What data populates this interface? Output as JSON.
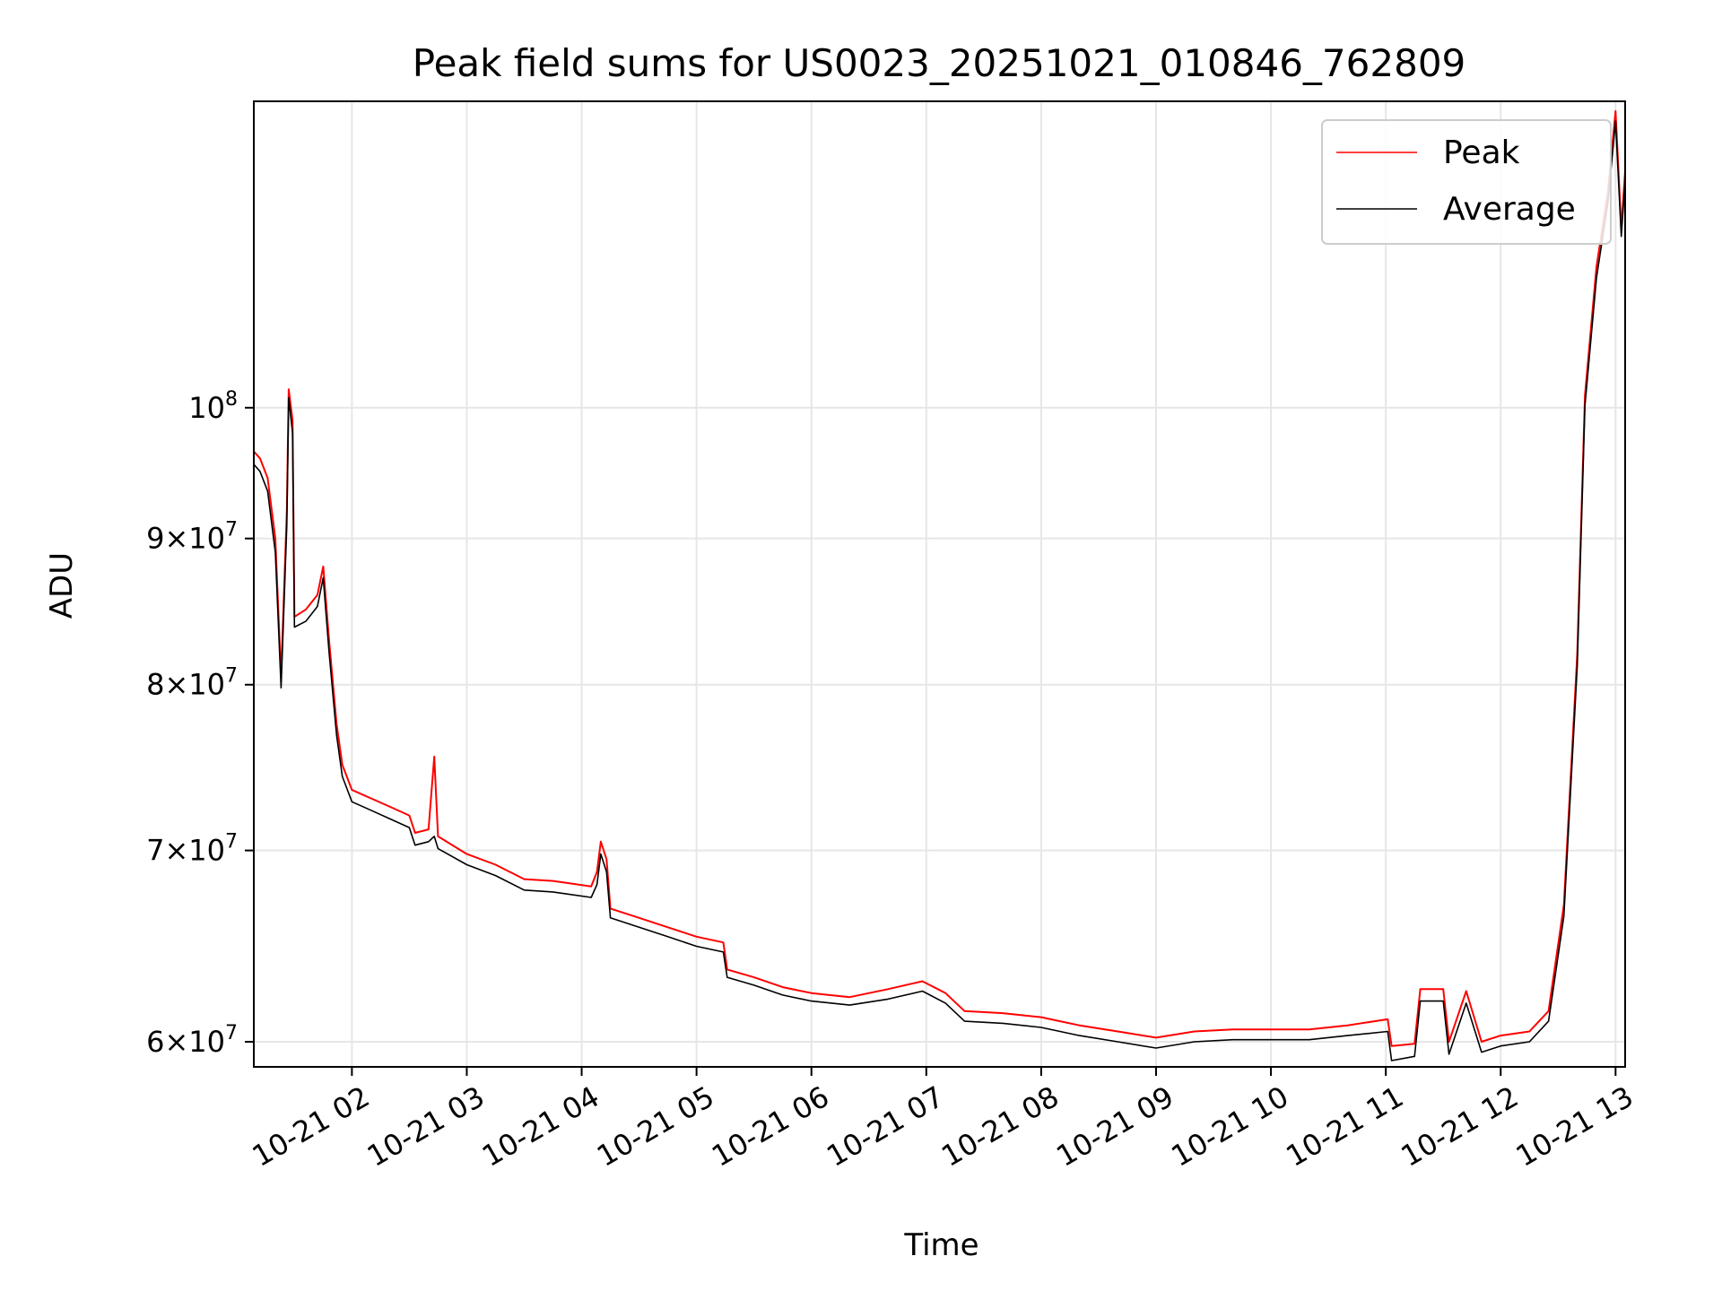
{
  "chart_data": {
    "type": "line",
    "title": "Peak field sums for US0023_20251021_010846_762809",
    "xlabel": "Time",
    "ylabel": "ADU",
    "y_scale": "log",
    "grid": true,
    "legend_position": "top-right",
    "xlim": [
      "2025-10-21 01:08:46",
      "2025-10-21 13:05:00"
    ],
    "ylim": [
      58800000,
      128000000
    ],
    "x_ticks": [
      "10-21 02",
      "10-21 03",
      "10-21 04",
      "10-21 05",
      "10-21 06",
      "10-21 07",
      "10-21 08",
      "10-21 09",
      "10-21 10",
      "10-21 11",
      "10-21 12",
      "10-21 13"
    ],
    "y_ticks": [
      {
        "value": 60000000,
        "mantissa": "6",
        "exponent": "7"
      },
      {
        "value": 70000000,
        "mantissa": "7",
        "exponent": "7"
      },
      {
        "value": 80000000,
        "mantissa": "8",
        "exponent": "7"
      },
      {
        "value": 90000000,
        "mantissa": "9",
        "exponent": "7"
      },
      {
        "value": 100000000,
        "mantissa": "",
        "exponent": "8"
      }
    ],
    "series": [
      {
        "name": "Peak",
        "color": "#ff0000",
        "points": [
          [
            "2025-10-21 01:09",
            96500000
          ],
          [
            "2025-10-21 01:12",
            96000000
          ],
          [
            "2025-10-21 01:16",
            94500000
          ],
          [
            "2025-10-21 01:20",
            90000000
          ],
          [
            "2025-10-21 01:23",
            80500000
          ],
          [
            "2025-10-21 01:26",
            92000000
          ],
          [
            "2025-10-21 01:27",
            101500000
          ],
          [
            "2025-10-21 01:29",
            99000000
          ],
          [
            "2025-10-21 01:30",
            84500000
          ],
          [
            "2025-10-21 01:36",
            85000000
          ],
          [
            "2025-10-21 01:42",
            86000000
          ],
          [
            "2025-10-21 01:45",
            88000000
          ],
          [
            "2025-10-21 01:48",
            83000000
          ],
          [
            "2025-10-21 01:52",
            77500000
          ],
          [
            "2025-10-21 01:55",
            75000000
          ],
          [
            "2025-10-21 02:00",
            73500000
          ],
          [
            "2025-10-21 02:10",
            73000000
          ],
          [
            "2025-10-21 02:20",
            72500000
          ],
          [
            "2025-10-21 02:30",
            72000000
          ],
          [
            "2025-10-21 02:33",
            71000000
          ],
          [
            "2025-10-21 02:40",
            71200000
          ],
          [
            "2025-10-21 02:43",
            75500000
          ],
          [
            "2025-10-21 02:45",
            70800000
          ],
          [
            "2025-10-21 03:00",
            69800000
          ],
          [
            "2025-10-21 03:15",
            69200000
          ],
          [
            "2025-10-21 03:30",
            68400000
          ],
          [
            "2025-10-21 03:45",
            68300000
          ],
          [
            "2025-10-21 04:05",
            68000000
          ],
          [
            "2025-10-21 04:08",
            68800000
          ],
          [
            "2025-10-21 04:10",
            70500000
          ],
          [
            "2025-10-21 04:13",
            69500000
          ],
          [
            "2025-10-21 04:15",
            66800000
          ],
          [
            "2025-10-21 04:30",
            66300000
          ],
          [
            "2025-10-21 04:45",
            65800000
          ],
          [
            "2025-10-21 05:00",
            65300000
          ],
          [
            "2025-10-21 05:14",
            65000000
          ],
          [
            "2025-10-21 05:16",
            63600000
          ],
          [
            "2025-10-21 05:30",
            63200000
          ],
          [
            "2025-10-21 05:45",
            62700000
          ],
          [
            "2025-10-21 06:00",
            62400000
          ],
          [
            "2025-10-21 06:20",
            62200000
          ],
          [
            "2025-10-21 06:40",
            62600000
          ],
          [
            "2025-10-21 06:58",
            63000000
          ],
          [
            "2025-10-21 07:10",
            62400000
          ],
          [
            "2025-10-21 07:20",
            61500000
          ],
          [
            "2025-10-21 07:40",
            61400000
          ],
          [
            "2025-10-21 08:00",
            61200000
          ],
          [
            "2025-10-21 08:20",
            60800000
          ],
          [
            "2025-10-21 08:40",
            60500000
          ],
          [
            "2025-10-21 09:00",
            60200000
          ],
          [
            "2025-10-21 09:20",
            60500000
          ],
          [
            "2025-10-21 09:40",
            60600000
          ],
          [
            "2025-10-21 10:00",
            60600000
          ],
          [
            "2025-10-21 10:20",
            60600000
          ],
          [
            "2025-10-21 10:40",
            60800000
          ],
          [
            "2025-10-21 11:01",
            61100000
          ],
          [
            "2025-10-21 11:03",
            59800000
          ],
          [
            "2025-10-21 11:15",
            59900000
          ],
          [
            "2025-10-21 11:18",
            62600000
          ],
          [
            "2025-10-21 11:30",
            62600000
          ],
          [
            "2025-10-21 11:33",
            60000000
          ],
          [
            "2025-10-21 11:42",
            62500000
          ],
          [
            "2025-10-21 11:50",
            60000000
          ],
          [
            "2025-10-21 12:00",
            60300000
          ],
          [
            "2025-10-21 12:15",
            60500000
          ],
          [
            "2025-10-21 12:25",
            61500000
          ],
          [
            "2025-10-21 12:33",
            67000000
          ],
          [
            "2025-10-21 12:40",
            82000000
          ],
          [
            "2025-10-21 12:44",
            101000000
          ],
          [
            "2025-10-21 12:50",
            112000000
          ],
          [
            "2025-10-21 12:56",
            119000000
          ],
          [
            "2025-10-21 13:00",
            127000000
          ],
          [
            "2025-10-21 13:01",
            123000000
          ],
          [
            "2025-10-21 13:03",
            115500000
          ],
          [
            "2025-10-21 13:05",
            121000000
          ]
        ]
      },
      {
        "name": "Average",
        "color": "#000000",
        "points": [
          [
            "2025-10-21 01:09",
            95500000
          ],
          [
            "2025-10-21 01:12",
            95000000
          ],
          [
            "2025-10-21 01:16",
            93500000
          ],
          [
            "2025-10-21 01:20",
            89000000
          ],
          [
            "2025-10-21 01:23",
            79800000
          ],
          [
            "2025-10-21 01:26",
            91000000
          ],
          [
            "2025-10-21 01:27",
            100800000
          ],
          [
            "2025-10-21 01:29",
            98000000
          ],
          [
            "2025-10-21 01:30",
            83800000
          ],
          [
            "2025-10-21 01:36",
            84200000
          ],
          [
            "2025-10-21 01:42",
            85200000
          ],
          [
            "2025-10-21 01:45",
            87200000
          ],
          [
            "2025-10-21 01:48",
            82200000
          ],
          [
            "2025-10-21 01:52",
            76800000
          ],
          [
            "2025-10-21 01:55",
            74300000
          ],
          [
            "2025-10-21 02:00",
            72800000
          ],
          [
            "2025-10-21 02:10",
            72300000
          ],
          [
            "2025-10-21 02:20",
            71800000
          ],
          [
            "2025-10-21 02:30",
            71300000
          ],
          [
            "2025-10-21 02:33",
            70300000
          ],
          [
            "2025-10-21 02:40",
            70500000
          ],
          [
            "2025-10-21 02:43",
            70800000
          ],
          [
            "2025-10-21 02:45",
            70100000
          ],
          [
            "2025-10-21 03:00",
            69200000
          ],
          [
            "2025-10-21 03:15",
            68600000
          ],
          [
            "2025-10-21 03:30",
            67800000
          ],
          [
            "2025-10-21 03:45",
            67700000
          ],
          [
            "2025-10-21 04:05",
            67400000
          ],
          [
            "2025-10-21 04:08",
            68100000
          ],
          [
            "2025-10-21 04:10",
            69800000
          ],
          [
            "2025-10-21 04:13",
            68800000
          ],
          [
            "2025-10-21 04:15",
            66300000
          ],
          [
            "2025-10-21 04:30",
            65800000
          ],
          [
            "2025-10-21 04:45",
            65300000
          ],
          [
            "2025-10-21 05:00",
            64800000
          ],
          [
            "2025-10-21 05:14",
            64500000
          ],
          [
            "2025-10-21 05:16",
            63200000
          ],
          [
            "2025-10-21 05:30",
            62800000
          ],
          [
            "2025-10-21 05:45",
            62300000
          ],
          [
            "2025-10-21 06:00",
            62000000
          ],
          [
            "2025-10-21 06:20",
            61800000
          ],
          [
            "2025-10-21 06:40",
            62100000
          ],
          [
            "2025-10-21 06:58",
            62500000
          ],
          [
            "2025-10-21 07:10",
            61900000
          ],
          [
            "2025-10-21 07:20",
            61000000
          ],
          [
            "2025-10-21 07:40",
            60900000
          ],
          [
            "2025-10-21 08:00",
            60700000
          ],
          [
            "2025-10-21 08:20",
            60300000
          ],
          [
            "2025-10-21 08:40",
            60000000
          ],
          [
            "2025-10-21 09:00",
            59700000
          ],
          [
            "2025-10-21 09:20",
            60000000
          ],
          [
            "2025-10-21 09:40",
            60100000
          ],
          [
            "2025-10-21 10:00",
            60100000
          ],
          [
            "2025-10-21 10:20",
            60100000
          ],
          [
            "2025-10-21 10:40",
            60300000
          ],
          [
            "2025-10-21 11:01",
            60500000
          ],
          [
            "2025-10-21 11:03",
            59100000
          ],
          [
            "2025-10-21 11:15",
            59300000
          ],
          [
            "2025-10-21 11:18",
            62000000
          ],
          [
            "2025-10-21 11:30",
            62000000
          ],
          [
            "2025-10-21 11:33",
            59400000
          ],
          [
            "2025-10-21 11:42",
            61900000
          ],
          [
            "2025-10-21 11:50",
            59500000
          ],
          [
            "2025-10-21 12:00",
            59800000
          ],
          [
            "2025-10-21 12:15",
            60000000
          ],
          [
            "2025-10-21 12:25",
            61000000
          ],
          [
            "2025-10-21 12:33",
            66400000
          ],
          [
            "2025-10-21 12:40",
            81200000
          ],
          [
            "2025-10-21 12:44",
            100200000
          ],
          [
            "2025-10-21 12:50",
            111000000
          ],
          [
            "2025-10-21 12:56",
            118000000
          ],
          [
            "2025-10-21 13:00",
            126000000
          ],
          [
            "2025-10-21 13:01",
            122000000
          ],
          [
            "2025-10-21 13:03",
            114800000
          ],
          [
            "2025-10-21 13:05",
            120200000
          ]
        ]
      }
    ]
  }
}
